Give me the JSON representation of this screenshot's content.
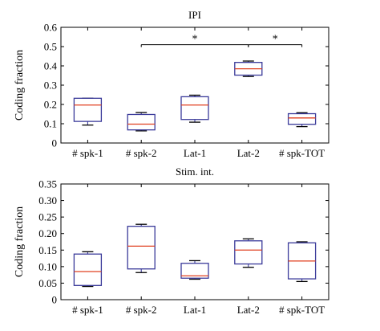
{
  "chart_data": [
    {
      "type": "box",
      "title": "IPI",
      "ylabel": "Coding fraction",
      "ylim": [
        0,
        0.6
      ],
      "yticks": [
        "0",
        "0.1",
        "0.2",
        "0.3",
        "0.4",
        "0.5",
        "0.6"
      ],
      "categories": [
        "# spk-1",
        "# spk-2",
        "Lat-1",
        "Lat-2",
        "# spk-TOT"
      ],
      "boxes": [
        {
          "min": 0.093,
          "q1": 0.112,
          "median": 0.197,
          "q3": 0.232,
          "max": 0.232
        },
        {
          "min": 0.063,
          "q1": 0.068,
          "median": 0.098,
          "q3": 0.148,
          "max": 0.158
        },
        {
          "min": 0.108,
          "q1": 0.122,
          "median": 0.197,
          "q3": 0.24,
          "max": 0.248
        },
        {
          "min": 0.345,
          "q1": 0.352,
          "median": 0.385,
          "q3": 0.418,
          "max": 0.425
        },
        {
          "min": 0.085,
          "q1": 0.097,
          "median": 0.13,
          "q3": 0.152,
          "max": 0.157
        }
      ],
      "significance": [
        {
          "from": 1,
          "to": 3,
          "y": 0.51,
          "label": "*"
        },
        {
          "from": 3,
          "to": 4,
          "y": 0.51,
          "label": "*"
        }
      ]
    },
    {
      "type": "box",
      "title": "Stim. int.",
      "ylabel": "Coding fraction",
      "ylim": [
        0,
        0.35
      ],
      "yticks": [
        "0",
        "0.05",
        "0.10",
        "0.15",
        "0.20",
        "0.25",
        "0.30",
        "0.35"
      ],
      "categories": [
        "# spk-1",
        "# spk-2",
        "Lat-1",
        "Lat-2",
        "# spk-TOT"
      ],
      "boxes": [
        {
          "min": 0.04,
          "q1": 0.043,
          "median": 0.085,
          "q3": 0.138,
          "max": 0.145
        },
        {
          "min": 0.082,
          "q1": 0.093,
          "median": 0.162,
          "q3": 0.222,
          "max": 0.228
        },
        {
          "min": 0.062,
          "q1": 0.065,
          "median": 0.072,
          "q3": 0.11,
          "max": 0.118
        },
        {
          "min": 0.098,
          "q1": 0.108,
          "median": 0.15,
          "q3": 0.178,
          "max": 0.184
        },
        {
          "min": 0.055,
          "q1": 0.063,
          "median": 0.117,
          "q3": 0.172,
          "max": 0.175
        }
      ]
    }
  ]
}
